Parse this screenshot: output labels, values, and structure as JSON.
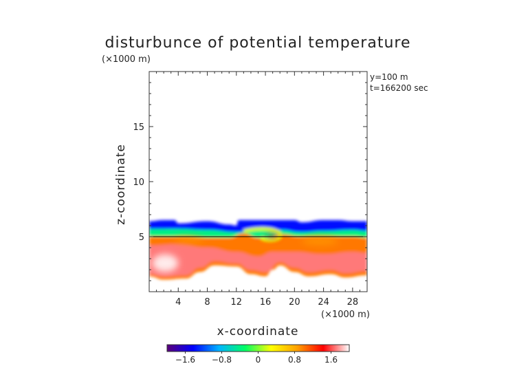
{
  "chart_data": {
    "type": "heatmap",
    "title": "disturbunce of potential temperature",
    "xlabel": "x-coordinate",
    "ylabel": "z-coordinate",
    "x_unit": "(×1000 m)",
    "y_unit": "(×1000 m)",
    "info_lines": [
      "y=100  m",
      "t=166200 sec"
    ],
    "xlim": [
      0,
      30
    ],
    "ylim": [
      0,
      20
    ],
    "x_ticks": [
      4,
      8,
      12,
      16,
      20,
      24,
      28
    ],
    "y_ticks": [
      5,
      10,
      15
    ],
    "color_scale": {
      "min": -2.0,
      "max": 2.0,
      "ticks": [
        -1.6,
        -0.8,
        0,
        0.8,
        1.6
      ],
      "tick_labels": [
        "−1.6",
        "−0.8",
        "0",
        "0.8",
        "1.6"
      ],
      "colormap": [
        "#5a0078",
        "#0000ff",
        "#00b4ff",
        "#00ff64",
        "#ffff00",
        "#ffa000",
        "#ff0000",
        "#ffffff"
      ]
    },
    "layers": [
      {
        "name": "upper negative layer",
        "value": -1.4,
        "top": [
          [
            0,
            6.4
          ],
          [
            2,
            6.5
          ],
          [
            3.5,
            6.5
          ],
          [
            4,
            6.2
          ],
          [
            8,
            6.4
          ],
          [
            11,
            6.1
          ],
          [
            12,
            6.0
          ],
          [
            12.3,
            6.5
          ],
          [
            16,
            6.5
          ],
          [
            20,
            6.5
          ],
          [
            21,
            6.3
          ],
          [
            24,
            6.5
          ],
          [
            26,
            6.5
          ],
          [
            28,
            6.4
          ],
          [
            30,
            6.4
          ]
        ],
        "bottom": [
          [
            0,
            5.6
          ],
          [
            3,
            5.7
          ],
          [
            8,
            5.6
          ],
          [
            12,
            5.4
          ],
          [
            14,
            5.5
          ],
          [
            16,
            5.5
          ],
          [
            18,
            5.6
          ],
          [
            21,
            5.4
          ],
          [
            24,
            5.5
          ],
          [
            28,
            5.6
          ],
          [
            30,
            5.5
          ]
        ]
      },
      {
        "name": "transition layer",
        "value": -0.4,
        "top": [
          [
            0,
            5.7
          ],
          [
            4,
            5.7
          ],
          [
            8,
            5.6
          ],
          [
            12,
            5.4
          ],
          [
            14,
            5.5
          ],
          [
            16,
            5.6
          ],
          [
            18,
            5.6
          ],
          [
            21,
            5.4
          ],
          [
            24,
            5.5
          ],
          [
            28,
            5.6
          ],
          [
            30,
            5.5
          ]
        ],
        "bottom": [
          [
            0,
            5.0
          ],
          [
            4,
            5.0
          ],
          [
            8,
            4.9
          ],
          [
            11,
            4.9
          ],
          [
            13,
            5.3
          ],
          [
            15,
            4.9
          ],
          [
            16.5,
            4.7
          ],
          [
            18,
            5.2
          ],
          [
            21,
            5.0
          ],
          [
            24,
            5.0
          ],
          [
            28,
            5.0
          ],
          [
            30,
            4.9
          ]
        ]
      },
      {
        "name": "warm layer",
        "value": 1.0,
        "top": [
          [
            0,
            5.0
          ],
          [
            4,
            5.0
          ],
          [
            8,
            4.9
          ],
          [
            11,
            4.9
          ],
          [
            13,
            5.3
          ],
          [
            15,
            4.9
          ],
          [
            16.5,
            4.7
          ],
          [
            18,
            5.2
          ],
          [
            21,
            5.0
          ],
          [
            24,
            5.0
          ],
          [
            28,
            5.0
          ],
          [
            30,
            4.9
          ]
        ],
        "bottom": [
          [
            0,
            1.4
          ],
          [
            2,
            1.1
          ],
          [
            5,
            1.2
          ],
          [
            7,
            1.8
          ],
          [
            9,
            2.4
          ],
          [
            12,
            2.3
          ],
          [
            14,
            1.6
          ],
          [
            16,
            1.4
          ],
          [
            17,
            2.0
          ],
          [
            18,
            2.4
          ],
          [
            20,
            1.8
          ],
          [
            22,
            1.4
          ],
          [
            25,
            1.6
          ],
          [
            27,
            1.3
          ],
          [
            30,
            1.5
          ]
        ]
      },
      {
        "name": "warm core",
        "value": 1.7,
        "top": [
          [
            0,
            4.2
          ],
          [
            4,
            4.3
          ],
          [
            8,
            4.0
          ],
          [
            12,
            3.6
          ],
          [
            15,
            3.2
          ],
          [
            17,
            3.6
          ],
          [
            20,
            3.6
          ],
          [
            24,
            3.4
          ],
          [
            28,
            3.6
          ],
          [
            30,
            3.5
          ]
        ],
        "bottom": [
          [
            0,
            1.6
          ],
          [
            2,
            1.4
          ],
          [
            5,
            1.5
          ],
          [
            7,
            2.2
          ],
          [
            9,
            2.8
          ],
          [
            12,
            2.6
          ],
          [
            14,
            2.0
          ],
          [
            16,
            1.8
          ],
          [
            18,
            2.7
          ],
          [
            20,
            2.2
          ],
          [
            22,
            1.8
          ],
          [
            25,
            2.0
          ],
          [
            27,
            1.7
          ],
          [
            30,
            1.9
          ]
        ]
      }
    ],
    "blobs": [
      {
        "name": "orange patch right",
        "value": 0.9,
        "x": 23.5,
        "z": 4.6,
        "rx": 2.5,
        "rz": 0.4
      },
      {
        "name": "orange patch left",
        "value": 0.9,
        "x": 5.5,
        "z": 4.7,
        "rx": 2.0,
        "rz": 0.25
      },
      {
        "name": "roll red core",
        "value": 1.5,
        "x": 17.0,
        "z": 5.0,
        "rx": 0.9,
        "rz": 0.2
      },
      {
        "name": "pale surface warm left",
        "value": 2.0,
        "x": 2.2,
        "z": 2.6,
        "rx": 1.8,
        "rz": 0.8
      }
    ]
  }
}
